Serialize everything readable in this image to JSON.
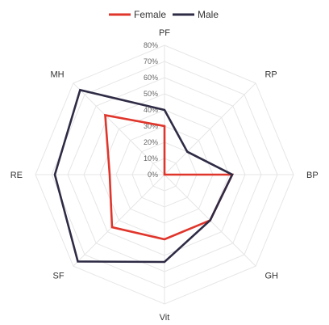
{
  "chart_data": {
    "type": "radar",
    "categories": [
      "PF",
      "RP",
      "BP",
      "GH",
      "Vit",
      "SF",
      "RE",
      "MH"
    ],
    "radial_ticks": [
      "0%",
      "10%",
      "20%",
      "30%",
      "40%",
      "50%",
      "60%",
      "70%",
      "80%"
    ],
    "rlim": [
      0,
      80
    ],
    "grid": true,
    "legend_position": "top",
    "series": [
      {
        "name": "Female",
        "color": "#e0352b",
        "values": [
          30,
          0,
          42,
          40,
          40,
          46,
          34,
          52
        ]
      },
      {
        "name": "Male",
        "color": "#2e2b45",
        "values": [
          40,
          20,
          42,
          40,
          54,
          76,
          68,
          74
        ]
      }
    ]
  }
}
